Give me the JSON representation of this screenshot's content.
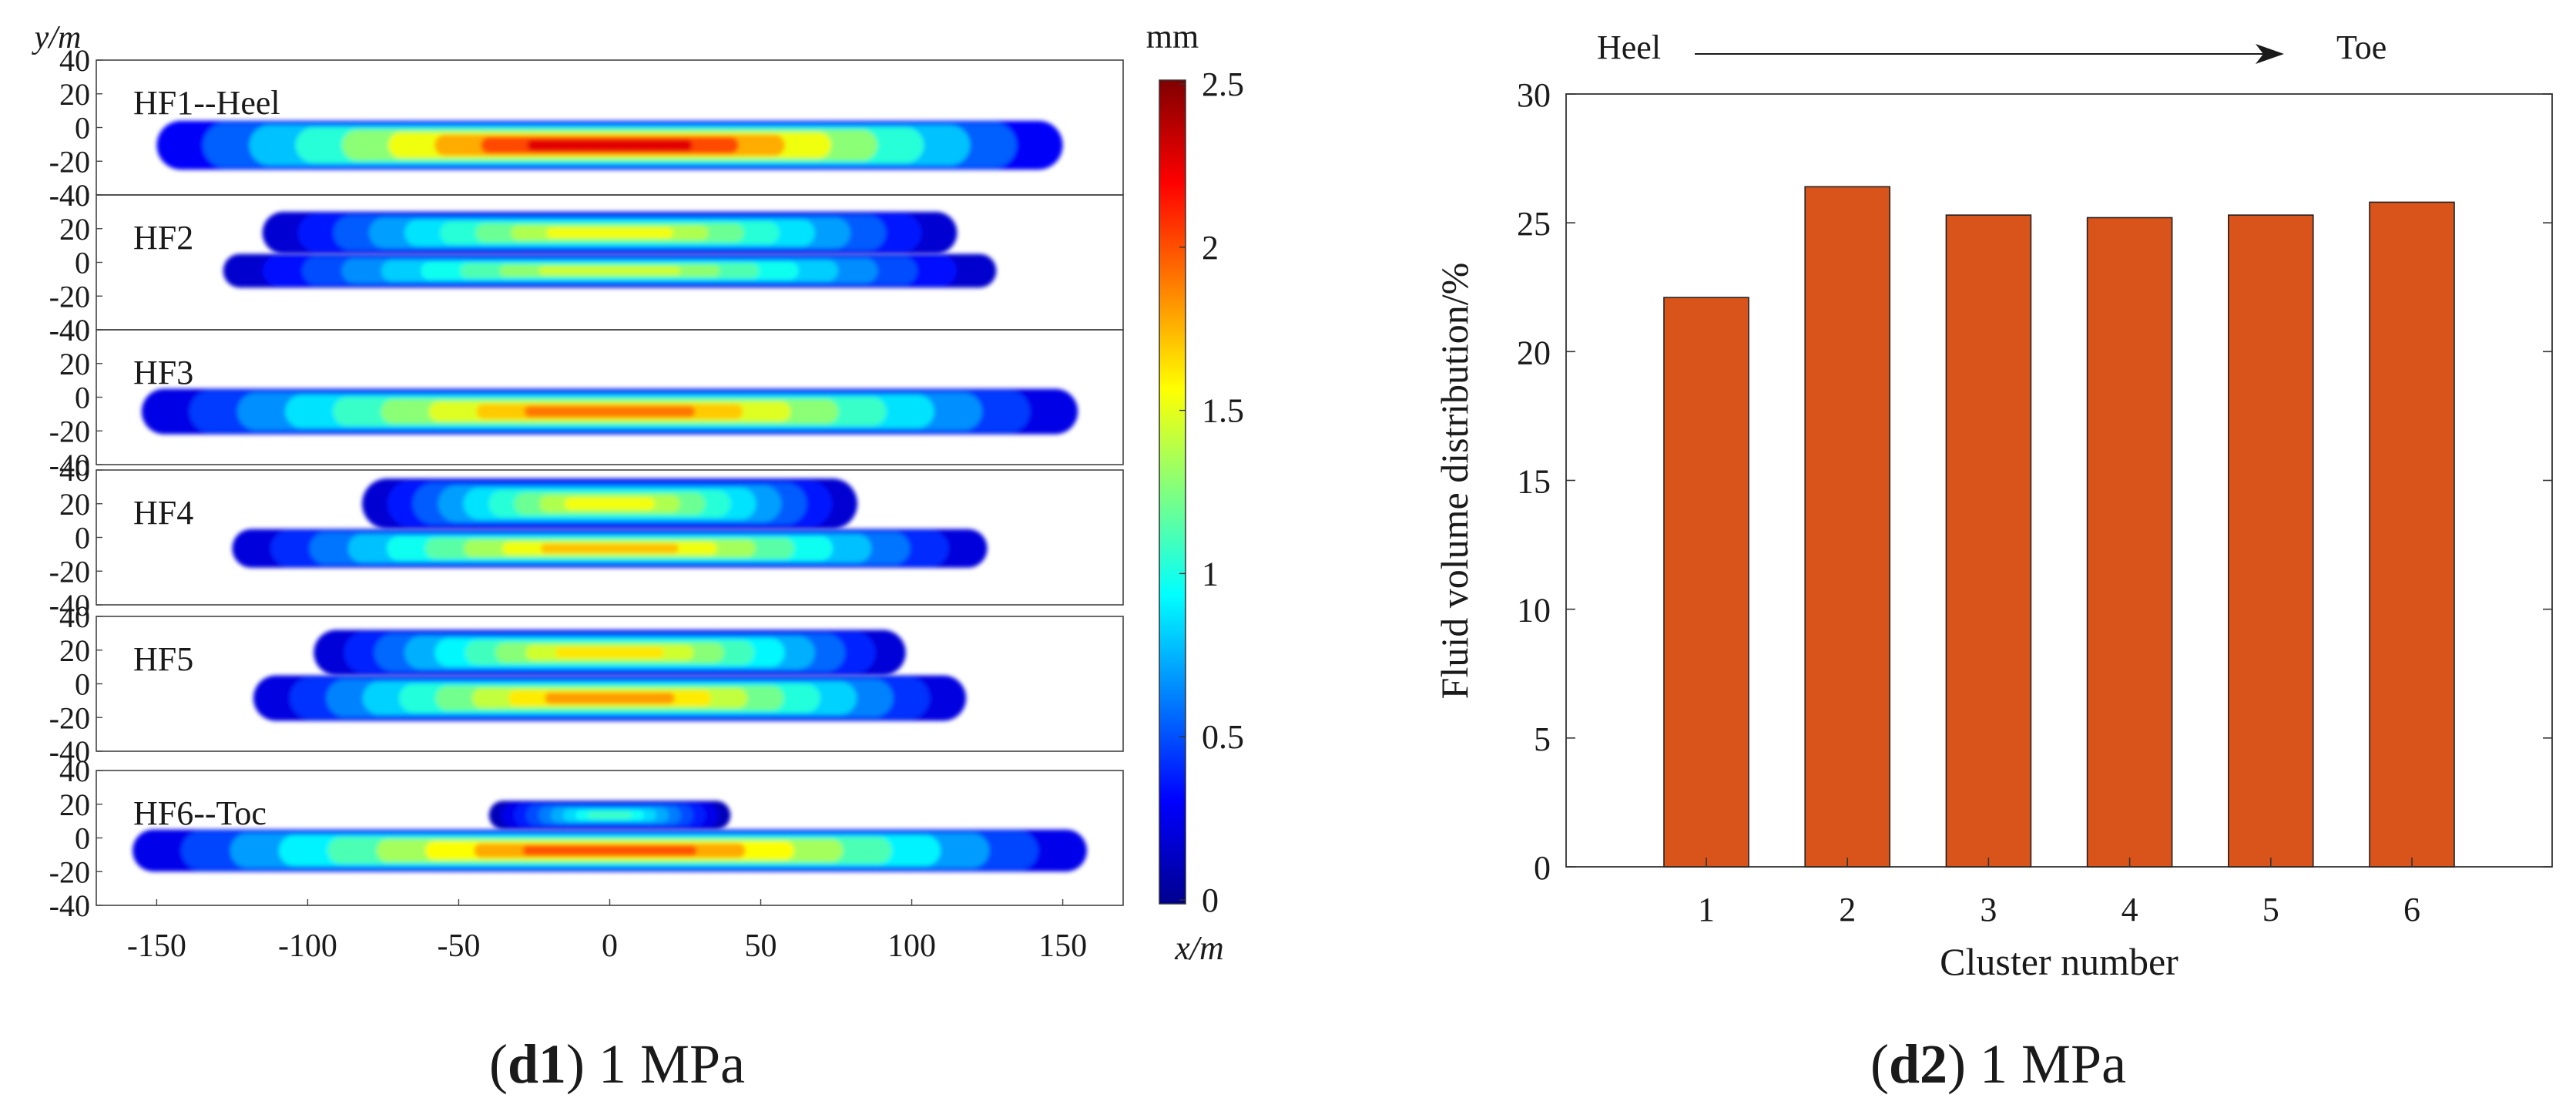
{
  "chart_data": [
    {
      "type": "heatmap",
      "colorbar": {
        "unit": "mm",
        "range": [
          0,
          2.5
        ],
        "ticks": [
          "0",
          "0.5",
          "1",
          "1.5",
          "2",
          "2.5"
        ]
      },
      "xlabel": "x/m",
      "ylabel": "y/m",
      "xlim": [
        -170,
        170
      ],
      "xticks": [
        "-150",
        "-100",
        "-50",
        "0",
        "50",
        "100",
        "150"
      ],
      "ylim": [
        -40,
        40
      ],
      "yticks": [
        "40",
        "20",
        "0",
        "-20",
        "-40"
      ],
      "panels": [
        {
          "label": "HF1--Heel",
          "bands": [
            {
              "x": [
                -150,
                150
              ],
              "y": [
                -25,
                4
              ],
              "peak": 2.5
            }
          ]
        },
        {
          "label": "HF2",
          "bands": [
            {
              "x": [
                -115,
                115
              ],
              "y": [
                5,
                30
              ],
              "peak": 1.7
            },
            {
              "x": [
                -128,
                128
              ],
              "y": [
                -15,
                5
              ],
              "peak": 1.6
            }
          ]
        },
        {
          "label": "HF3",
          "bands": [
            {
              "x": [
                -155,
                155
              ],
              "y": [
                -22,
                5
              ],
              "peak": 2.1
            }
          ]
        },
        {
          "label": "HF4",
          "bands": [
            {
              "x": [
                -82,
                82
              ],
              "y": [
                5,
                35
              ],
              "peak": 1.7
            },
            {
              "x": [
                -125,
                125
              ],
              "y": [
                -18,
                5
              ],
              "peak": 1.9
            }
          ]
        },
        {
          "label": "HF5",
          "bands": [
            {
              "x": [
                -98,
                98
              ],
              "y": [
                5,
                32
              ],
              "peak": 1.8
            },
            {
              "x": [
                -118,
                118
              ],
              "y": [
                -22,
                5
              ],
              "peak": 2.0
            }
          ]
        },
        {
          "label": "HF6--Toc",
          "bands": [
            {
              "x": [
                -40,
                40
              ],
              "y": [
                5,
                22
              ],
              "peak": 1.2
            },
            {
              "x": [
                -158,
                158
              ],
              "y": [
                -20,
                5
              ],
              "peak": 2.2
            }
          ]
        }
      ],
      "caption": {
        "id": "d1",
        "text": "1 MPa"
      }
    },
    {
      "type": "bar",
      "arrow": {
        "from": "Heel",
        "to": "Toe"
      },
      "categories": [
        "1",
        "2",
        "3",
        "4",
        "5",
        "6"
      ],
      "values": [
        22.1,
        26.4,
        25.3,
        25.2,
        25.3,
        25.8
      ],
      "xlabel": "Cluster number",
      "ylabel": "Fluid volume distribution/%",
      "ylim": [
        0,
        30
      ],
      "yticks": [
        "0",
        "5",
        "10",
        "15",
        "20",
        "25",
        "30"
      ],
      "bar_color": "#d9541a",
      "caption": {
        "id": "d2",
        "text": "1 MPa"
      }
    }
  ]
}
